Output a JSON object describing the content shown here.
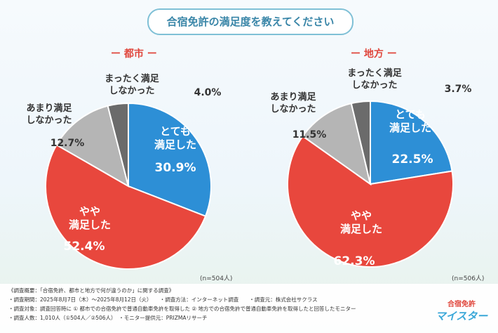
{
  "title": "合宿免許の満足度を教えてください",
  "chart_data": [
    {
      "type": "pie",
      "title": "都市",
      "n_label": "(n=504人)",
      "slices": [
        {
          "label": [
            "とても",
            "満足した"
          ],
          "value": 30.9,
          "color": "#2d8fd6"
        },
        {
          "label": [
            "やや",
            "満足した"
          ],
          "value": 52.4,
          "color": "#e8473d"
        },
        {
          "label": [
            "あまり満足",
            "しなかった"
          ],
          "value": 12.7,
          "color": "#b5b5b5"
        },
        {
          "label": [
            "まったく満足",
            "しなかった"
          ],
          "value": 4.0,
          "color": "#6b6b6b"
        }
      ]
    },
    {
      "type": "pie",
      "title": "地方",
      "n_label": "(n=506人)",
      "slices": [
        {
          "label": [
            "とても",
            "満足した"
          ],
          "value": 22.5,
          "color": "#2d8fd6"
        },
        {
          "label": [
            "やや",
            "満足した"
          ],
          "value": 62.3,
          "color": "#e8473d"
        },
        {
          "label": [
            "あまり満足",
            "しなかった"
          ],
          "value": 11.5,
          "color": "#b5b5b5"
        },
        {
          "label": [
            "まったく満足",
            "しなかった"
          ],
          "value": 3.7,
          "color": "#6b6b6b"
        }
      ]
    }
  ],
  "footer": {
    "line1": "《調査概要：「合宿免許、都市と地方で何が違うのか」に関する調査》",
    "line2": "・調査期間：2025年8月7日（木）～2025年8月12日（火）　　・調査方法：インターネット調査　　・調査元：株式会社サクラス",
    "line3": "・調査対象：調査回答時に ① 都市での合宿免許で普通自動車免許を取得した ② 地方での合宿免許で普通自動車免許を取得したと回答したモニター",
    "line4": "・調査人数：1,010人（①504人／②506人）　・モニター提供元：PRIZMAリサーチ"
  },
  "logo": {
    "line1": "合宿免許",
    "line2": "マイスター"
  }
}
